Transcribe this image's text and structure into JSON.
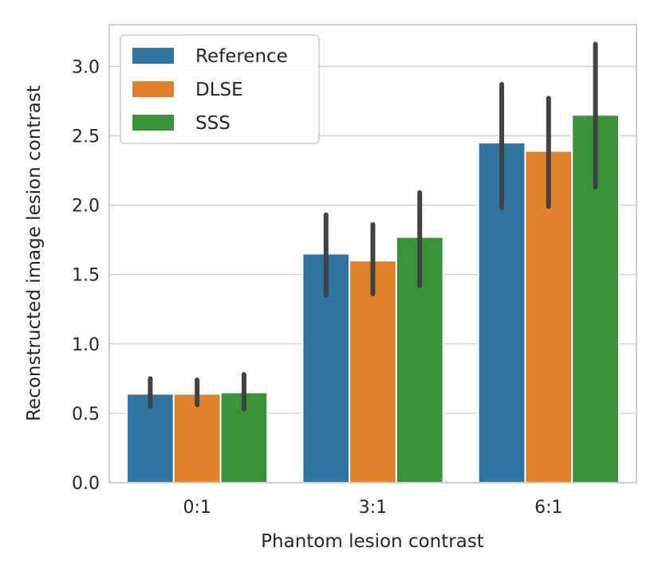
{
  "chart_data": {
    "type": "bar",
    "title": "",
    "xlabel": "Phantom lesion contrast",
    "ylabel": "Reconstructed image lesion contrast",
    "categories": [
      "0:1",
      "3:1",
      "6:1"
    ],
    "ylim": [
      0,
      3.3
    ],
    "yticks": [
      0.0,
      0.5,
      1.0,
      1.5,
      2.0,
      2.5,
      3.0
    ],
    "ytick_labels": [
      "0.0",
      "0.5",
      "1.0",
      "1.5",
      "2.0",
      "2.5",
      "3.0"
    ],
    "grid": true,
    "legend_position": "top-left",
    "series": [
      {
        "name": "Reference",
        "color": "#3274a1",
        "values": [
          0.64,
          1.65,
          2.45
        ],
        "err_low": [
          0.55,
          1.35,
          1.98
        ],
        "err_high": [
          0.75,
          1.93,
          2.87
        ]
      },
      {
        "name": "DLSE",
        "color": "#e1812c",
        "values": [
          0.64,
          1.6,
          2.39
        ],
        "err_low": [
          0.56,
          1.36,
          1.99
        ],
        "err_high": [
          0.74,
          1.86,
          2.77
        ]
      },
      {
        "name": "SSS",
        "color": "#3a923a",
        "values": [
          0.65,
          1.77,
          2.65
        ],
        "err_low": [
          0.53,
          1.42,
          2.13
        ],
        "err_high": [
          0.78,
          2.09,
          3.16
        ]
      }
    ]
  }
}
